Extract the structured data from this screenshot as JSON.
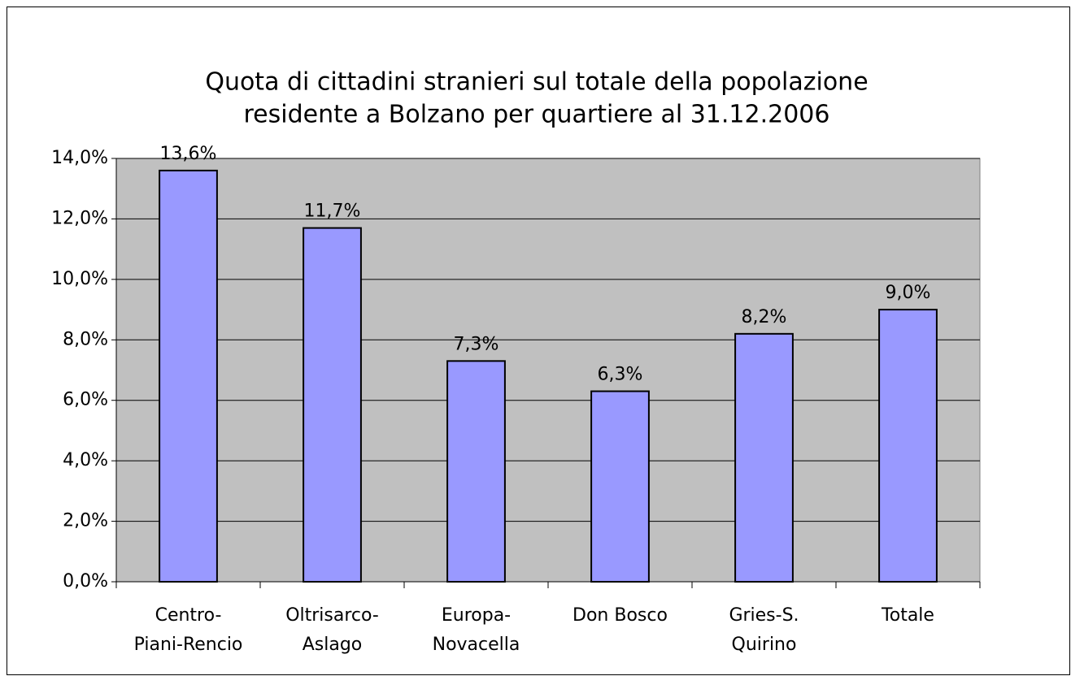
{
  "chart_data": {
    "type": "bar",
    "title": [
      "Quota di cittadini stranieri sul totale della popolazione",
      "residente a Bolzano per quartiere al 31.12.2006"
    ],
    "categories": [
      [
        "Centro-",
        "Piani-Rencio"
      ],
      [
        "Oltrisarco-",
        "Aslago"
      ],
      [
        "Europa-",
        "Novacella"
      ],
      [
        "Don Bosco"
      ],
      [
        "Gries-S.",
        "Quirino"
      ],
      [
        "Totale"
      ]
    ],
    "values": [
      13.6,
      11.7,
      7.3,
      6.3,
      8.2,
      9.0
    ],
    "value_labels": [
      "13,6%",
      "11,7%",
      "7,3%",
      "6,3%",
      "8,2%",
      "9,0%"
    ],
    "color": "#9999ff",
    "ylim": [
      0,
      14
    ],
    "yticks": [
      {
        "value": 0,
        "label": "0,0%"
      },
      {
        "value": 2,
        "label": "2,0%"
      },
      {
        "value": 4,
        "label": "4,0%"
      },
      {
        "value": 6,
        "label": "6,0%"
      },
      {
        "value": 8,
        "label": "8,0%"
      },
      {
        "value": 10,
        "label": "10,0%"
      },
      {
        "value": 12,
        "label": "12,0%"
      },
      {
        "value": 14,
        "label": "14,0%"
      }
    ],
    "grid": true
  }
}
